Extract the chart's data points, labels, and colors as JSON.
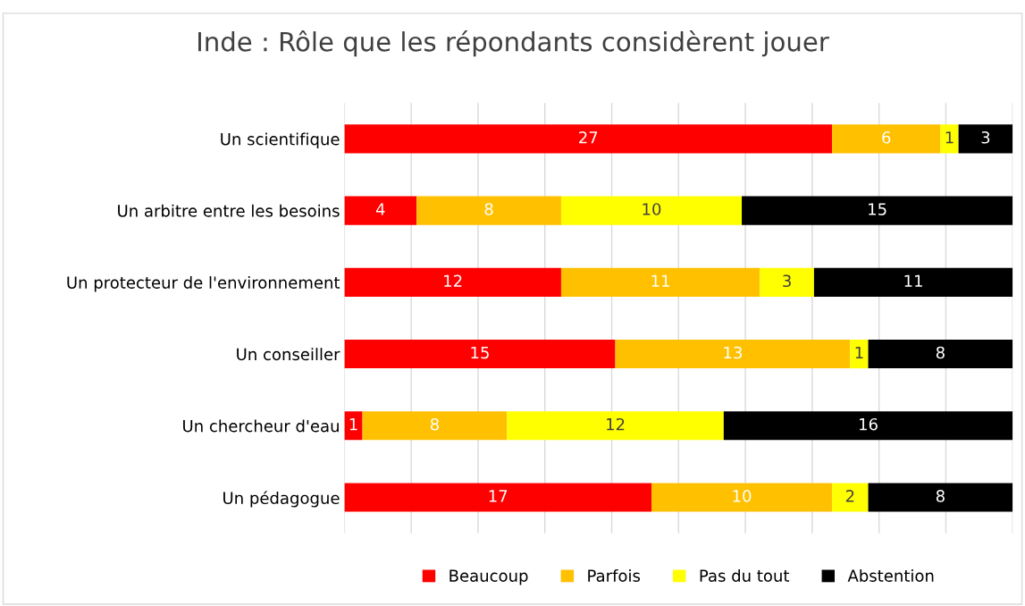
{
  "chart_data": {
    "type": "bar",
    "orientation": "horizontal",
    "stacked": true,
    "title": "Inde : Rôle que les répondants considèrent jouer",
    "categories": [
      "Un scientifique",
      "Un arbitre entre les besoins",
      "Un protecteur de l'environnement",
      "Un conseiller",
      "Un chercheur d'eau",
      "Un pédagogue"
    ],
    "series": [
      {
        "name": "Beaucoup",
        "color": "#ff0000",
        "values": [
          27,
          4,
          12,
          15,
          1,
          17
        ]
      },
      {
        "name": "Parfois",
        "color": "#ffc000",
        "values": [
          6,
          8,
          11,
          13,
          8,
          10
        ]
      },
      {
        "name": "Pas du tout",
        "color": "#ffff00",
        "values": [
          1,
          10,
          3,
          1,
          12,
          2
        ]
      },
      {
        "name": "Abstention",
        "color": "#000000",
        "values": [
          3,
          15,
          11,
          8,
          16,
          8
        ]
      }
    ],
    "xlim": [
      0,
      37
    ],
    "xticks": [
      {
        "value": 0,
        "label": null
      },
      {
        "value": 3.7,
        "label": null
      },
      {
        "value": 7.4,
        "label": null
      },
      {
        "value": 11.1,
        "label": null
      },
      {
        "value": 14.8,
        "label": null
      },
      {
        "value": 18.5,
        "label": null
      },
      {
        "value": 22.2,
        "label": null
      },
      {
        "value": 25.9,
        "label": null
      },
      {
        "value": 29.6,
        "label": null
      },
      {
        "value": 33.3,
        "label": null
      },
      {
        "value": 37,
        "label": null
      }
    ],
    "tick_labels": "y",
    "grid": "x",
    "legend": "bottom",
    "data_labels": true
  }
}
